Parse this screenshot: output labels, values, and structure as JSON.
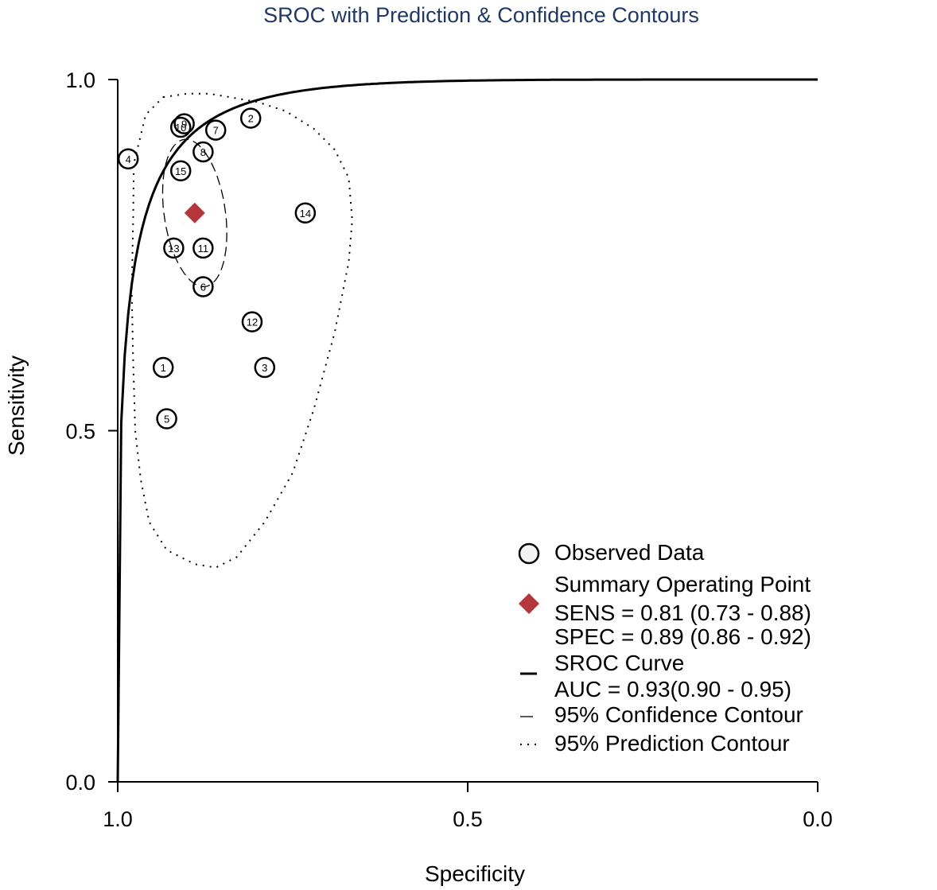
{
  "chart_data": {
    "type": "scatter",
    "title": "SROC with Prediction & Confidence Contours",
    "xlabel": "Specificity",
    "ylabel": "Sensitivity",
    "xlim": [
      1.0,
      0.0
    ],
    "ylim": [
      0.0,
      1.0
    ],
    "x_reversed": true,
    "x_ticks": [
      "1.0",
      "0.5",
      "0.0"
    ],
    "x_tick_values": [
      1.0,
      0.5,
      0.0
    ],
    "y_ticks": [
      "0.0",
      "0.5",
      "1.0"
    ],
    "y_tick_values": [
      0.0,
      0.5,
      1.0
    ],
    "grid": false,
    "observed": [
      {
        "label": "1",
        "spec": 0.935,
        "sens": 0.59
      },
      {
        "label": "2",
        "spec": 0.81,
        "sens": 0.945
      },
      {
        "label": "3",
        "spec": 0.79,
        "sens": 0.59
      },
      {
        "label": "4",
        "spec": 0.985,
        "sens": 0.887
      },
      {
        "label": "5",
        "spec": 0.93,
        "sens": 0.517
      },
      {
        "label": "6",
        "spec": 0.878,
        "sens": 0.705
      },
      {
        "label": "7",
        "spec": 0.86,
        "sens": 0.928
      },
      {
        "label": "8",
        "spec": 0.878,
        "sens": 0.897
      },
      {
        "label": "9",
        "spec": 0.905,
        "sens": 0.937
      },
      {
        "label": "10",
        "spec": 0.91,
        "sens": 0.932
      },
      {
        "label": "11",
        "spec": 0.878,
        "sens": 0.76
      },
      {
        "label": "12",
        "spec": 0.808,
        "sens": 0.655
      },
      {
        "label": "13",
        "spec": 0.92,
        "sens": 0.76
      },
      {
        "label": "14",
        "spec": 0.732,
        "sens": 0.81
      },
      {
        "label": "15",
        "spec": 0.91,
        "sens": 0.87
      }
    ],
    "summary_point": {
      "spec": 0.89,
      "sens": 0.81,
      "color": "#b5373b"
    },
    "sroc_curve": {
      "auc": 0.93
    },
    "legend": {
      "placement": "bottom-right",
      "items": [
        {
          "key": "observed",
          "text": "Observed Data"
        },
        {
          "key": "summary",
          "text": "Summary Operating Point"
        },
        {
          "key": "sens",
          "text": "SENS = 0.81 (0.73 - 0.88)"
        },
        {
          "key": "spec",
          "text": "SPEC = 0.89 (0.86 - 0.92)"
        },
        {
          "key": "sroc",
          "text": "SROC Curve"
        },
        {
          "key": "auc",
          "text": "AUC = 0.93(0.90 - 0.95)"
        },
        {
          "key": "confidence",
          "text": "95% Confidence Contour"
        },
        {
          "key": "prediction",
          "text": "95% Prediction Contour"
        }
      ]
    }
  },
  "colors": {
    "title": "#1f3864",
    "summary": "#b5373b",
    "ink": "#000000"
  }
}
